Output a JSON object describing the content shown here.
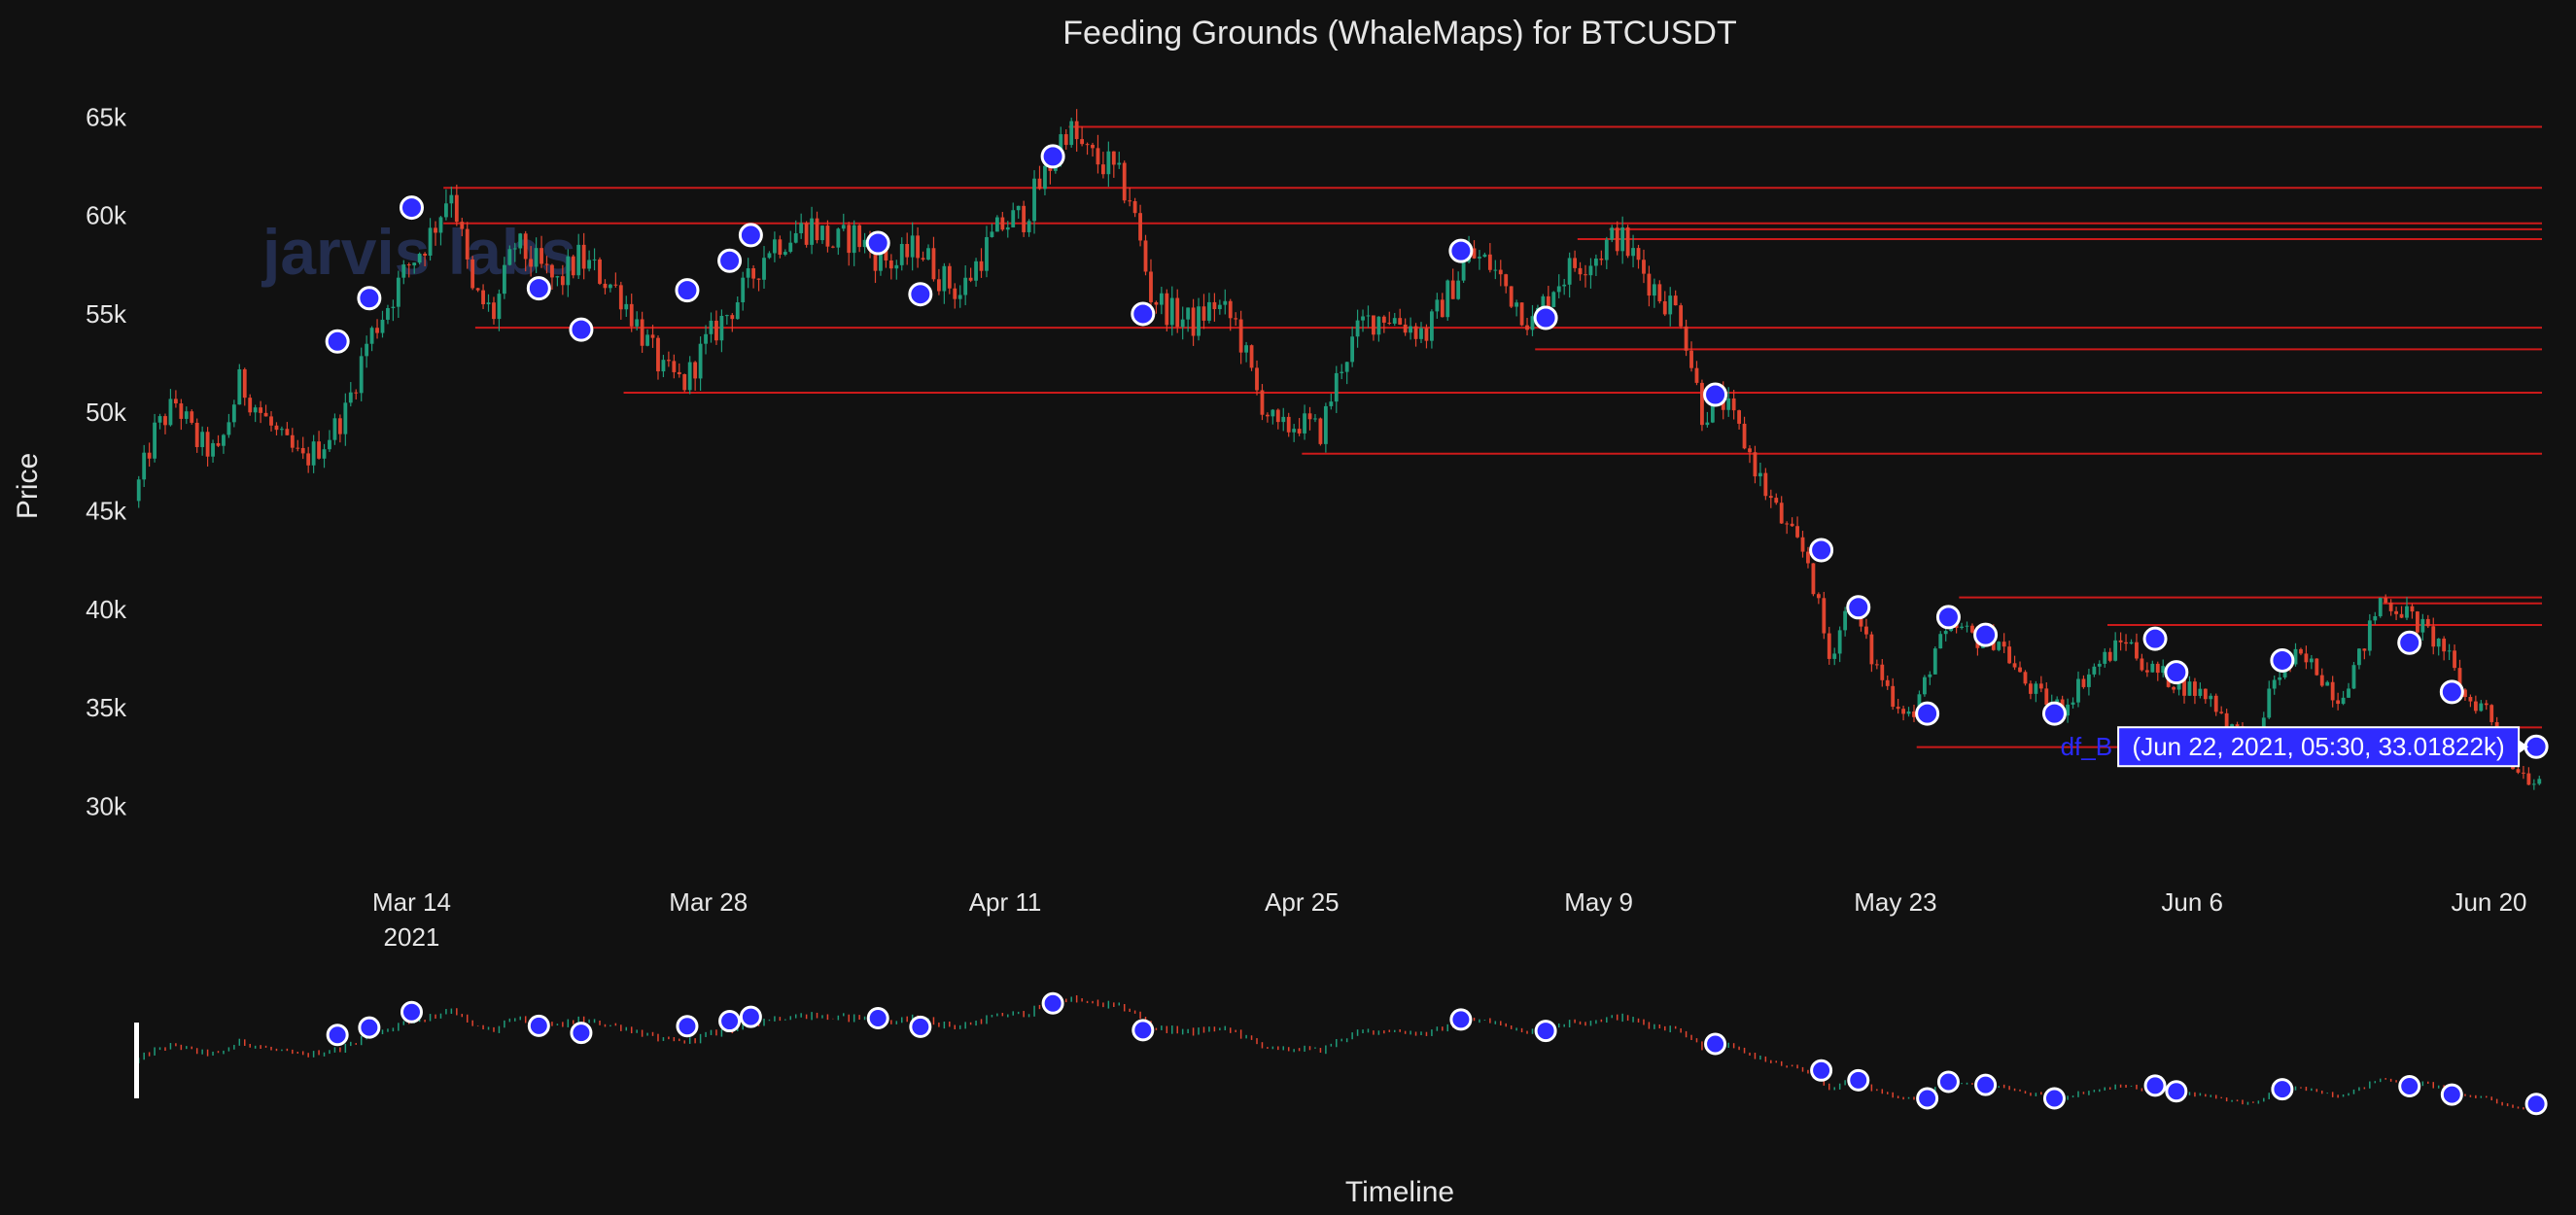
{
  "chart_data": {
    "type": "candlestick",
    "title": "Feeding Grounds (WhaleMaps) for BTCUSDT",
    "xlabel": "Timeline",
    "ylabel": "Price",
    "x_range": [
      "2021-03-01T00:00",
      "2021-06-22T12:00"
    ],
    "ylim": [
      27500,
      66500
    ],
    "y_ticks": [
      {
        "value": 30000,
        "label": "30k"
      },
      {
        "value": 35000,
        "label": "35k"
      },
      {
        "value": 40000,
        "label": "40k"
      },
      {
        "value": 45000,
        "label": "45k"
      },
      {
        "value": 50000,
        "label": "50k"
      },
      {
        "value": 55000,
        "label": "55k"
      },
      {
        "value": 60000,
        "label": "60k"
      },
      {
        "value": 65000,
        "label": "65k"
      }
    ],
    "x_ticks": [
      {
        "date": "2021-03-14",
        "label": "Mar 14",
        "sublabel": "2021"
      },
      {
        "date": "2021-03-28",
        "label": "Mar 28"
      },
      {
        "date": "2021-04-11",
        "label": "Apr 11"
      },
      {
        "date": "2021-04-25",
        "label": "Apr 25"
      },
      {
        "date": "2021-05-09",
        "label": "May 9"
      },
      {
        "date": "2021-05-23",
        "label": "May 23"
      },
      {
        "date": "2021-06-06",
        "label": "Jun 6"
      },
      {
        "date": "2021-06-20",
        "label": "Jun 20"
      }
    ],
    "price_path": [
      [
        "2021-03-01",
        45500
      ],
      [
        "2021-03-02",
        49000
      ],
      [
        "2021-03-03",
        50500
      ],
      [
        "2021-03-04",
        48500
      ],
      [
        "2021-03-05",
        47800
      ],
      [
        "2021-03-06",
        51500
      ],
      [
        "2021-03-07",
        50000
      ],
      [
        "2021-03-08",
        48500
      ],
      [
        "2021-03-09",
        47500
      ],
      [
        "2021-03-10",
        48500
      ],
      [
        "2021-03-11",
        50000
      ],
      [
        "2021-03-12",
        53500
      ],
      [
        "2021-03-13",
        55500
      ],
      [
        "2021-03-14",
        57500
      ],
      [
        "2021-03-15",
        59000
      ],
      [
        "2021-03-16",
        61500
      ],
      [
        "2021-03-17",
        56000
      ],
      [
        "2021-03-18",
        55000
      ],
      [
        "2021-03-19",
        58500
      ],
      [
        "2021-03-20",
        57500
      ],
      [
        "2021-03-21",
        56500
      ],
      [
        "2021-03-22",
        57800
      ],
      [
        "2021-03-23",
        57000
      ],
      [
        "2021-03-24",
        56000
      ],
      [
        "2021-03-25",
        54000
      ],
      [
        "2021-03-26",
        52000
      ],
      [
        "2021-03-27",
        51500
      ],
      [
        "2021-03-28",
        53500
      ],
      [
        "2021-03-29",
        55000
      ],
      [
        "2021-03-30",
        56500
      ],
      [
        "2021-03-31",
        58500
      ],
      [
        "2021-04-01",
        59000
      ],
      [
        "2021-04-02",
        59500
      ],
      [
        "2021-04-03",
        58500
      ],
      [
        "2021-04-04",
        59000
      ],
      [
        "2021-04-05",
        58000
      ],
      [
        "2021-04-06",
        57500
      ],
      [
        "2021-04-07",
        58500
      ],
      [
        "2021-04-08",
        57000
      ],
      [
        "2021-04-09",
        56000
      ],
      [
        "2021-04-10",
        58000
      ],
      [
        "2021-04-11",
        59500
      ],
      [
        "2021-04-12",
        60000
      ],
      [
        "2021-04-13",
        62000
      ],
      [
        "2021-04-14",
        64500
      ],
      [
        "2021-04-15",
        63000
      ],
      [
        "2021-04-16",
        62500
      ],
      [
        "2021-04-17",
        61000
      ],
      [
        "2021-04-18",
        56000
      ],
      [
        "2021-04-19",
        55000
      ],
      [
        "2021-04-20",
        54500
      ],
      [
        "2021-04-21",
        55500
      ],
      [
        "2021-04-22",
        54500
      ],
      [
        "2021-04-23",
        51000
      ],
      [
        "2021-04-24",
        49000
      ],
      [
        "2021-04-25",
        49500
      ],
      [
        "2021-04-26",
        49000
      ],
      [
        "2021-04-27",
        52500
      ],
      [
        "2021-04-28",
        54500
      ],
      [
        "2021-04-29",
        55000
      ],
      [
        "2021-04-30",
        54500
      ],
      [
        "2021-05-01",
        54000
      ],
      [
        "2021-05-02",
        56000
      ],
      [
        "2021-05-03",
        58000
      ],
      [
        "2021-05-04",
        57500
      ],
      [
        "2021-05-05",
        56000
      ],
      [
        "2021-05-06",
        54500
      ],
      [
        "2021-05-07",
        56500
      ],
      [
        "2021-05-08",
        57500
      ],
      [
        "2021-05-09",
        58000
      ],
      [
        "2021-05-10",
        59000
      ],
      [
        "2021-05-11",
        57500
      ],
      [
        "2021-05-12",
        56000
      ],
      [
        "2021-05-13",
        55000
      ],
      [
        "2021-05-14",
        50000
      ],
      [
        "2021-05-15",
        50500
      ],
      [
        "2021-05-16",
        48500
      ],
      [
        "2021-05-17",
        46000
      ],
      [
        "2021-05-18",
        44000
      ],
      [
        "2021-05-19",
        42500
      ],
      [
        "2021-05-20",
        37500
      ],
      [
        "2021-05-21",
        40500
      ],
      [
        "2021-05-22",
        37500
      ],
      [
        "2021-05-23",
        35500
      ],
      [
        "2021-05-24",
        34500
      ],
      [
        "2021-05-25",
        38000
      ],
      [
        "2021-05-26",
        39000
      ],
      [
        "2021-05-27",
        38500
      ],
      [
        "2021-05-28",
        38500
      ],
      [
        "2021-05-29",
        36500
      ],
      [
        "2021-05-30",
        35500
      ],
      [
        "2021-05-31",
        35000
      ],
      [
        "2021-06-01",
        36500
      ],
      [
        "2021-06-02",
        37500
      ],
      [
        "2021-06-03",
        38500
      ],
      [
        "2021-06-04",
        37000
      ],
      [
        "2021-06-05",
        36500
      ],
      [
        "2021-06-06",
        36000
      ],
      [
        "2021-06-07",
        35500
      ],
      [
        "2021-06-08",
        34000
      ],
      [
        "2021-06-09",
        33000
      ],
      [
        "2021-06-10",
        36500
      ],
      [
        "2021-06-11",
        37500
      ],
      [
        "2021-06-12",
        37000
      ],
      [
        "2021-06-13",
        35500
      ],
      [
        "2021-06-14",
        37500
      ],
      [
        "2021-06-15",
        40500
      ],
      [
        "2021-06-16",
        40000
      ],
      [
        "2021-06-17",
        39000
      ],
      [
        "2021-06-18",
        38000
      ],
      [
        "2021-06-19",
        35500
      ],
      [
        "2021-06-20",
        35000
      ],
      [
        "2021-06-21",
        32500
      ],
      [
        "2021-06-22",
        31500
      ]
    ],
    "markers": [
      [
        "2021-03-10T12:00",
        53600
      ],
      [
        "2021-03-12T00:00",
        55800
      ],
      [
        "2021-03-14T00:00",
        60400
      ],
      [
        "2021-03-20T00:00",
        56300
      ],
      [
        "2021-03-22T00:00",
        54200
      ],
      [
        "2021-03-27T00:00",
        56200
      ],
      [
        "2021-03-29T00:00",
        57700
      ],
      [
        "2021-03-30T00:00",
        59000
      ],
      [
        "2021-04-05T00:00",
        58600
      ],
      [
        "2021-04-07T00:00",
        56000
      ],
      [
        "2021-04-13T06:00",
        63000
      ],
      [
        "2021-04-17T12:00",
        55000
      ],
      [
        "2021-05-02T12:00",
        58200
      ],
      [
        "2021-05-06T12:00",
        54800
      ],
      [
        "2021-05-14T12:00",
        50900
      ],
      [
        "2021-05-19T12:00",
        43000
      ],
      [
        "2021-05-21T06:00",
        40100
      ],
      [
        "2021-05-24T12:00",
        34700
      ],
      [
        "2021-05-25T12:00",
        39600
      ],
      [
        "2021-05-27T06:00",
        38700
      ],
      [
        "2021-05-30T12:00",
        34700
      ],
      [
        "2021-06-04T06:00",
        38500
      ],
      [
        "2021-06-05T06:00",
        36800
      ],
      [
        "2021-06-10T06:00",
        37400
      ],
      [
        "2021-06-16T06:00",
        38300
      ],
      [
        "2021-06-18T06:00",
        35800
      ],
      [
        "2021-06-22T05:30",
        33018
      ]
    ],
    "levels": [
      {
        "start": "2021-04-14T00:00",
        "price": 64500
      },
      {
        "start": "2021-03-15T12:00",
        "price": 61400
      },
      {
        "start": "2021-03-15T12:00",
        "price": 59600
      },
      {
        "start": "2021-05-09T12:00",
        "price": 59300
      },
      {
        "start": "2021-05-08T00:00",
        "price": 58800
      },
      {
        "start": "2021-03-17T00:00",
        "price": 54300
      },
      {
        "start": "2021-05-06T00:00",
        "price": 53200
      },
      {
        "start": "2021-03-24T00:00",
        "price": 51000
      },
      {
        "start": "2021-04-25T00:00",
        "price": 47900
      },
      {
        "start": "2021-05-26T00:00",
        "price": 40600
      },
      {
        "start": "2021-06-15T00:00",
        "price": 40300
      },
      {
        "start": "2021-06-02T00:00",
        "price": 39200
      },
      {
        "start": "2021-06-20T12:00",
        "price": 34000
      },
      {
        "start": "2021-05-24T00:00",
        "price": 33000
      }
    ],
    "hover": {
      "trace_label": "df_B",
      "text": "(Jun 22, 2021, 05:30, 33.01822k)",
      "x": "2021-06-22T05:30",
      "y": 33018
    },
    "colors": {
      "background": "#111111",
      "increasing": "#1f9b7a",
      "decreasing": "#e0442f",
      "level": "#cc1a1a",
      "marker_fill": "#2f2bff",
      "marker_edge": "#ffffff",
      "range_slider_handle": "#ffffff"
    },
    "watermark_text": "jarvis labs"
  }
}
